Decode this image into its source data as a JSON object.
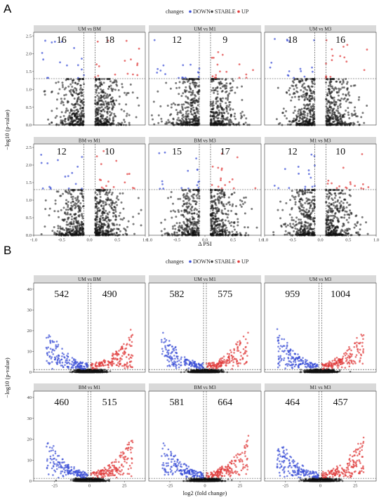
{
  "panel_a": {
    "letter": "A",
    "legend": {
      "title": "changes",
      "items": [
        {
          "label": "DOWN",
          "color": "#3b4fd6"
        },
        {
          "label": "STABLE",
          "color": "#444444"
        },
        {
          "label": "UP",
          "color": "#e03a3a"
        }
      ]
    }
  },
  "panel_b": {
    "letter": "B",
    "legend": {
      "title": "changes",
      "items": [
        {
          "label": "DOWN",
          "color": "#3b4fd6"
        },
        {
          "label": "STABLE",
          "color": "#444444"
        },
        {
          "label": "UP",
          "color": "#e03a3a"
        }
      ]
    }
  },
  "chart_data": [
    {
      "type": "scatter",
      "panel": "A",
      "subtype": "volcano",
      "xlabel": "Δ PSI",
      "ylabel": "−log10 (p-value)",
      "xlim": [
        -1.0,
        1.0
      ],
      "ylim": [
        0,
        2.6
      ],
      "xticks": [
        "-1.0",
        "-0.5",
        "0.0",
        "0.5",
        "1.0"
      ],
      "yticks": [
        "0.0",
        "0.5",
        "1.0",
        "1.5",
        "2.0",
        "2.5"
      ],
      "thresholds": {
        "x": [
          -0.1,
          0.1
        ],
        "y": 1.3
      },
      "facets": [
        {
          "title": "UM vs BM",
          "down": "16",
          "up": "18"
        },
        {
          "title": "UM vs M1",
          "down": "12",
          "up": "9"
        },
        {
          "title": "UM vs M3",
          "down": "18",
          "up": "16"
        },
        {
          "title": "BM vs M1",
          "down": "12",
          "up": "10"
        },
        {
          "title": "BM vs M3",
          "down": "15",
          "up": "17"
        },
        {
          "title": "M1 vs M3",
          "down": "12",
          "up": "10"
        }
      ]
    },
    {
      "type": "scatter",
      "panel": "B",
      "subtype": "volcano",
      "xlabel": "log2 (fold change)",
      "ylabel": "−log10 (p-value)",
      "xlim": [
        -40,
        40
      ],
      "ylim": [
        0,
        43
      ],
      "xticks": [
        "-25",
        "0",
        "25"
      ],
      "yticks": [
        "0",
        "10",
        "20",
        "30",
        "40"
      ],
      "thresholds": {
        "x": [
          -1,
          1
        ],
        "y": 1.3
      },
      "facets": [
        {
          "title": "UM vs BM",
          "down": "542",
          "up": "490"
        },
        {
          "title": "UM vs M1",
          "down": "582",
          "up": "575"
        },
        {
          "title": "UM vs M3",
          "down": "959",
          "up": "1004"
        },
        {
          "title": "BM vs M1",
          "down": "460",
          "up": "515"
        },
        {
          "title": "BM vs M3",
          "down": "581",
          "up": "664"
        },
        {
          "title": "M1 vs M3",
          "down": "464",
          "up": "457"
        }
      ]
    }
  ]
}
